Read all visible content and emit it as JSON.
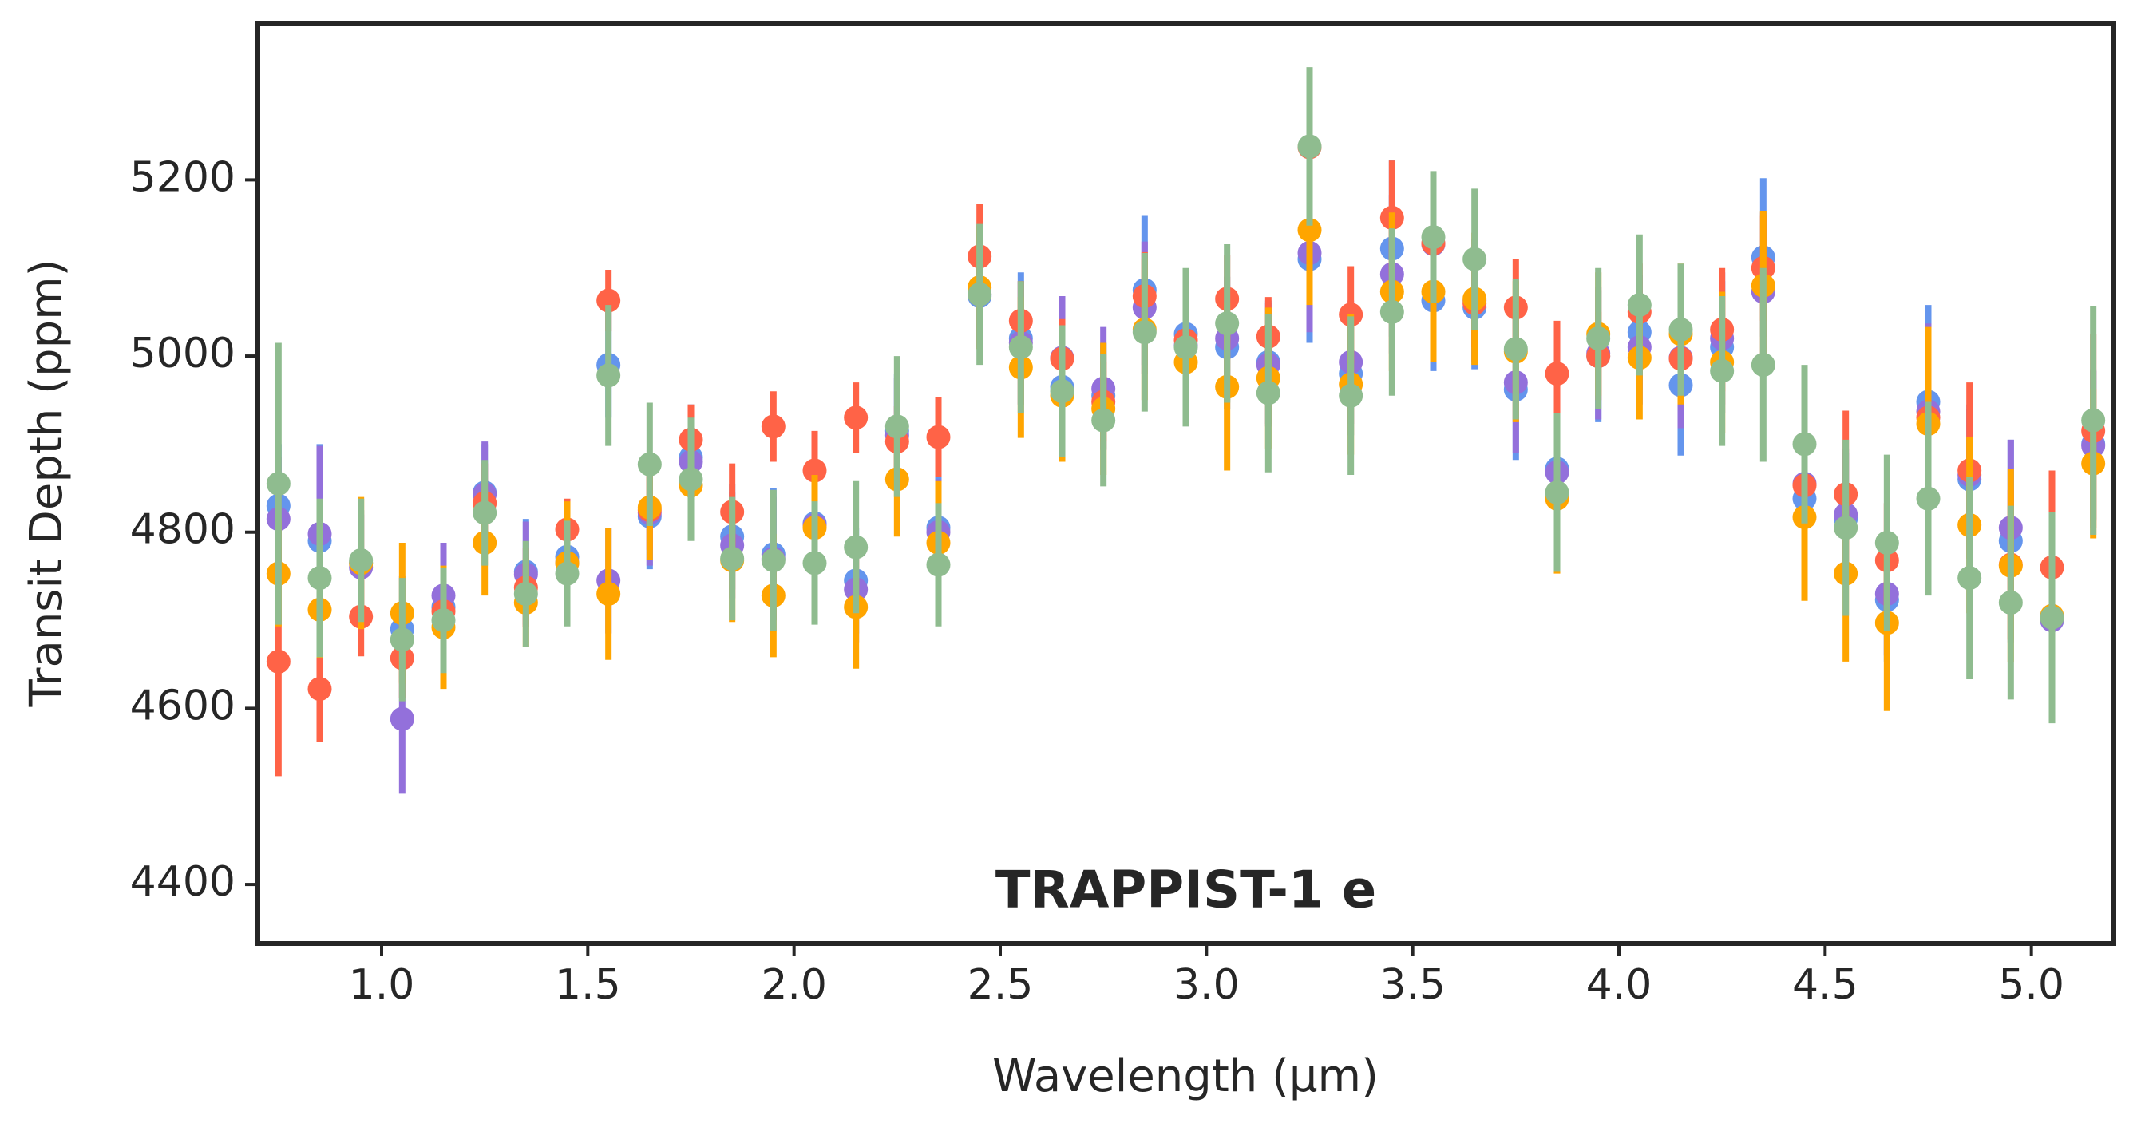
{
  "chart_data": {
    "type": "errorbar",
    "xlabel": "Wavelength (μm)",
    "ylabel": "Transit Depth (ppm)",
    "annotation": "TRAPPIST-1 e",
    "xlim": [
      0.7,
      5.2
    ],
    "ylim": [
      4333,
      5378
    ],
    "xticks": [
      {
        "value": 1,
        "label": "1.0"
      },
      {
        "value": 1.5,
        "label": "1.5"
      },
      {
        "value": 2,
        "label": "2.0"
      },
      {
        "value": 2.5,
        "label": "2.5"
      },
      {
        "value": 3,
        "label": "3.0"
      },
      {
        "value": 3.5,
        "label": "3.5"
      },
      {
        "value": 4,
        "label": "4.0"
      },
      {
        "value": 4.5,
        "label": "4.5"
      },
      {
        "value": 5,
        "label": "5.0"
      }
    ],
    "yticks": [
      4400,
      4600,
      4800,
      5000,
      5200
    ],
    "x": [
      0.75,
      0.85,
      0.95,
      1.05,
      1.15,
      1.25,
      1.35,
      1.45,
      1.55,
      1.65,
      1.75,
      1.85,
      1.95,
      2.05,
      2.15,
      2.25,
      2.35,
      2.45,
      2.55,
      2.65,
      2.75,
      2.85,
      2.95,
      3.05,
      3.15,
      3.25,
      3.35,
      3.45,
      3.55,
      3.65,
      3.75,
      3.85,
      3.95,
      4.05,
      4.15,
      4.25,
      4.35,
      4.45,
      4.55,
      4.65,
      4.75,
      4.85,
      4.95,
      5.05,
      5.15
    ],
    "series": [
      {
        "color": "#6495ed",
        "values": [
          4830,
          4790,
          4765,
          4690,
          4715,
          4845,
          4755,
          4772,
          4990,
          4818,
          4885,
          4795,
          4775,
          4810,
          4745,
          4915,
          4805,
          5068,
          5020,
          4965,
          4955,
          5075,
          5025,
          5010,
          4993,
          5110,
          4980,
          5122,
          5063,
          5055,
          4962,
          4872,
          5000,
          5027,
          4967,
          5010,
          5112,
          4838,
          4815,
          4723,
          4948,
          4860,
          4790,
          4700,
          4900
        ],
        "errors": [
          70,
          110,
          60,
          60,
          55,
          55,
          60,
          55,
          60,
          60,
          60,
          60,
          75,
          60,
          60,
          65,
          60,
          60,
          75,
          70,
          60,
          85,
          70,
          70,
          70,
          95,
          70,
          100,
          80,
          70,
          80,
          80,
          75,
          65,
          80,
          75,
          90,
          70,
          75,
          70,
          110,
          80,
          115,
          90,
          85
        ]
      },
      {
        "color": "#9370db",
        "values": [
          4815,
          4798,
          4760,
          4588,
          4728,
          4843,
          4752,
          4765,
          4745,
          4822,
          4880,
          4785,
          4770,
          4808,
          4735,
          4910,
          4800,
          5070,
          5015,
          4998,
          4963,
          5055,
          5012,
          5020,
          4990,
          5117,
          4993,
          5093,
          5127,
          5063,
          4970,
          4868,
          5003,
          5010,
          4998,
          5020,
          5073,
          4855,
          4820,
          4730,
          4937,
          4865,
          4805,
          4700,
          4898
        ],
        "errors": [
          70,
          100,
          60,
          85,
          60,
          60,
          60,
          55,
          60,
          60,
          60,
          60,
          70,
          60,
          60,
          65,
          60,
          60,
          70,
          70,
          70,
          75,
          70,
          70,
          70,
          90,
          70,
          90,
          80,
          70,
          80,
          80,
          75,
          65,
          80,
          75,
          90,
          70,
          75,
          70,
          100,
          80,
          100,
          90,
          85
        ]
      },
      {
        "color": "#ff6347",
        "values": [
          4653,
          4622,
          4704,
          4657,
          4710,
          4833,
          4737,
          4803,
          5063,
          4825,
          4905,
          4823,
          4920,
          4870,
          4930,
          4903,
          4908,
          5113,
          5040,
          4997,
          4948,
          5068,
          5018,
          5065,
          5022,
          5237,
          5047,
          5157,
          5128,
          5060,
          5055,
          4980,
          5000,
          5050,
          4997,
          5030,
          5100,
          4853,
          4843,
          4768,
          4930,
          4870,
          4763,
          4760,
          4915
        ],
        "errors": [
          130,
          60,
          45,
          45,
          45,
          45,
          45,
          35,
          35,
          45,
          40,
          55,
          40,
          45,
          40,
          40,
          45,
          60,
          45,
          45,
          45,
          50,
          45,
          50,
          45,
          60,
          55,
          65,
          55,
          50,
          55,
          60,
          50,
          55,
          50,
          70,
          60,
          60,
          95,
          65,
          80,
          100,
          85,
          110,
          110
        ]
      },
      {
        "color": "#ffa500",
        "values": [
          4753,
          4712,
          4765,
          4708,
          4692,
          4788,
          4720,
          4765,
          4730,
          4828,
          4853,
          4768,
          4728,
          4805,
          4715,
          4860,
          4788,
          5078,
          4987,
          4955,
          4940,
          5030,
          4993,
          4965,
          4975,
          5143,
          4968,
          5073,
          5073,
          5065,
          5005,
          4838,
          5025,
          4998,
          5025,
          4993,
          5080,
          4817,
          4753,
          4697,
          4923,
          4808,
          4762,
          4705,
          4878
        ],
        "errors": [
          60,
          55,
          75,
          80,
          70,
          60,
          50,
          70,
          75,
          60,
          60,
          70,
          70,
          60,
          70,
          65,
          70,
          70,
          80,
          75,
          75,
          80,
          70,
          95,
          80,
          85,
          80,
          90,
          80,
          75,
          80,
          85,
          70,
          70,
          80,
          80,
          85,
          95,
          100,
          100,
          110,
          100,
          110,
          110,
          85
        ]
      },
      {
        "color": "#8fbc8f",
        "values": [
          4855,
          4748,
          4768,
          4678,
          4700,
          4822,
          4730,
          4753,
          4978,
          4877,
          4860,
          4770,
          4768,
          4765,
          4783,
          4920,
          4763,
          5070,
          5010,
          4960,
          4927,
          5027,
          5010,
          5037,
          4958,
          5238,
          4955,
          5050,
          5135,
          5110,
          5008,
          4845,
          5020,
          5058,
          5030,
          4983,
          4990,
          4900,
          4805,
          4788,
          4838,
          4748,
          4720,
          4703,
          4927
        ],
        "errors": [
          160,
          90,
          70,
          70,
          60,
          60,
          60,
          60,
          80,
          70,
          70,
          70,
          80,
          70,
          75,
          80,
          70,
          80,
          75,
          75,
          75,
          90,
          90,
          90,
          90,
          90,
          90,
          95,
          75,
          80,
          80,
          90,
          80,
          80,
          75,
          85,
          110,
          90,
          100,
          100,
          110,
          115,
          110,
          120,
          130
        ]
      }
    ]
  }
}
